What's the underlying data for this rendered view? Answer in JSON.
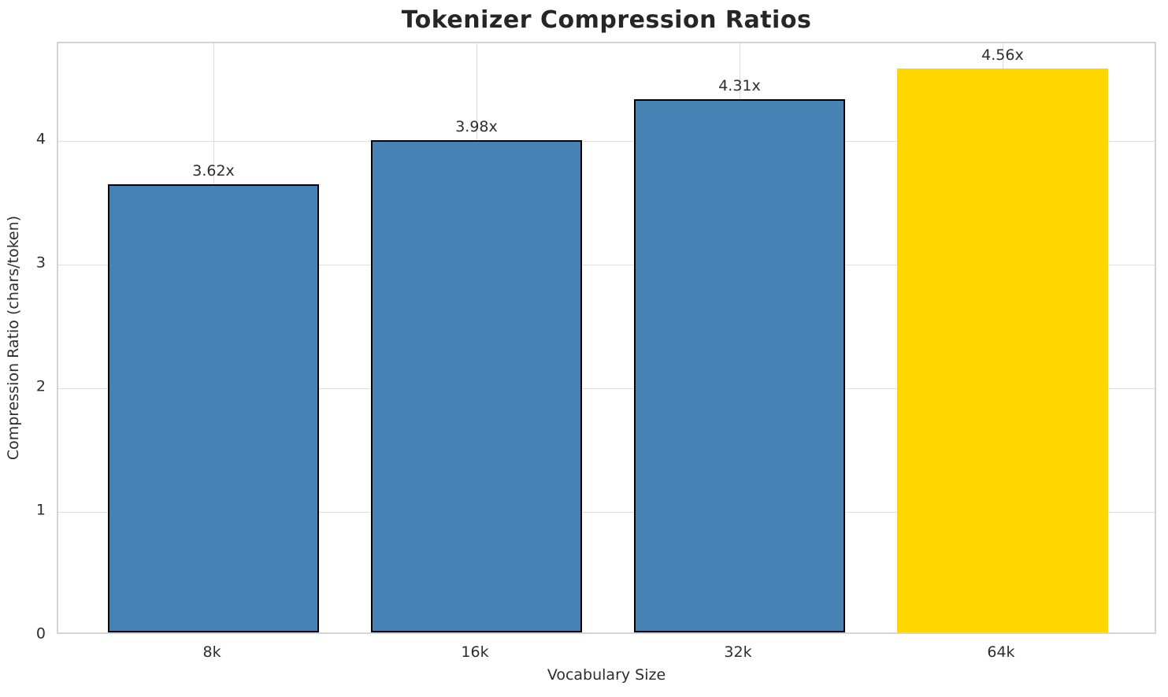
{
  "chart_data": {
    "type": "bar",
    "title": "Tokenizer Compression Ratios",
    "categories": [
      "8k",
      "16k",
      "32k",
      "64k"
    ],
    "values": [
      3.62,
      3.98,
      4.31,
      4.56
    ],
    "value_labels": [
      "3.62x",
      "3.98x",
      "4.31x",
      "4.56x"
    ],
    "xlabel": "Vocabulary Size",
    "ylabel": "Compression Ratio (chars/token)",
    "ylim": [
      0,
      4.788
    ],
    "yticks": [
      0,
      1,
      2,
      3,
      4
    ],
    "xlim": [
      -0.59,
      3.59
    ],
    "bar_width": 0.8,
    "grid": true,
    "legend": false,
    "bar_colors": [
      "#4682B4",
      "#4682B4",
      "#4682B4",
      "#FFD700"
    ],
    "bar_edge_colors": [
      "#000000",
      "#000000",
      "#000000",
      "none"
    ],
    "highlight_index": 3,
    "colors": {
      "series_blue": "#4682B4",
      "highlight_gold": "#FFD700",
      "bar_edge": "#000000",
      "grid": "#dcdcdc",
      "spine": "#d4d4d4",
      "text": "#2e2e2e",
      "title_text": "#262626",
      "background": "#ffffff"
    }
  }
}
